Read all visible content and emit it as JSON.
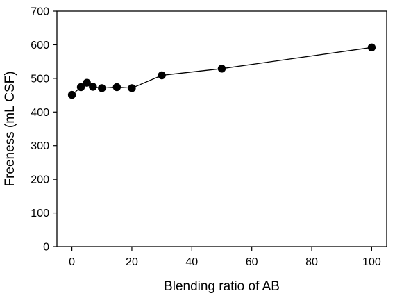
{
  "chart_data": {
    "type": "line",
    "title": "",
    "xlabel": "Blending ratio of AB",
    "ylabel": "Freeness (mL CSF)",
    "xlim": [
      -5,
      105
    ],
    "ylim": [
      0,
      700
    ],
    "x_ticks": [
      0,
      20,
      40,
      60,
      80,
      100
    ],
    "y_ticks": [
      0,
      100,
      200,
      300,
      400,
      500,
      600,
      700
    ],
    "grid": false,
    "legend": "none",
    "series": [
      {
        "x": [
          0,
          3,
          5,
          7,
          10,
          15,
          20,
          30,
          50,
          100
        ],
        "y": [
          451,
          474,
          487,
          475,
          471,
          474,
          471,
          509,
          529,
          592
        ],
        "color": "#000000",
        "marker": "filled-circle"
      }
    ]
  }
}
